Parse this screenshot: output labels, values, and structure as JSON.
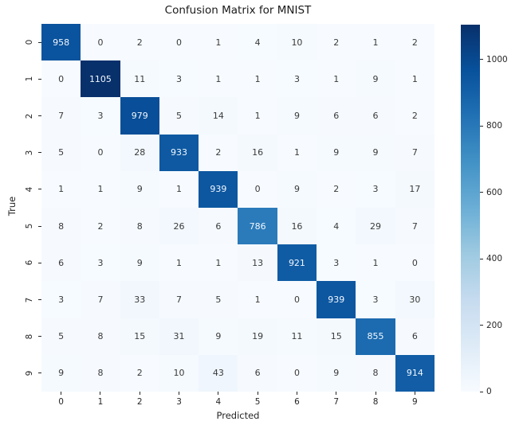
{
  "chart_data": {
    "type": "heatmap",
    "title": "Confusion Matrix for MNIST",
    "xlabel": "Predicted",
    "ylabel": "True",
    "x_tick_labels": [
      "0",
      "1",
      "2",
      "3",
      "4",
      "5",
      "6",
      "7",
      "8",
      "9"
    ],
    "y_tick_labels": [
      "0",
      "1",
      "2",
      "3",
      "4",
      "5",
      "6",
      "7",
      "8",
      "9"
    ],
    "matrix": [
      [
        958,
        0,
        2,
        0,
        1,
        4,
        10,
        2,
        1,
        2
      ],
      [
        0,
        1105,
        11,
        3,
        1,
        1,
        3,
        1,
        9,
        1
      ],
      [
        7,
        3,
        979,
        5,
        14,
        1,
        9,
        6,
        6,
        2
      ],
      [
        5,
        0,
        28,
        933,
        2,
        16,
        1,
        9,
        9,
        7
      ],
      [
        1,
        1,
        9,
        1,
        939,
        0,
        9,
        2,
        3,
        17
      ],
      [
        8,
        2,
        8,
        26,
        6,
        786,
        16,
        4,
        29,
        7
      ],
      [
        6,
        3,
        9,
        1,
        1,
        13,
        921,
        3,
        1,
        0
      ],
      [
        3,
        7,
        33,
        7,
        5,
        1,
        0,
        939,
        3,
        30
      ],
      [
        5,
        8,
        15,
        31,
        9,
        19,
        11,
        15,
        855,
        6
      ],
      [
        9,
        8,
        2,
        10,
        43,
        6,
        0,
        9,
        8,
        914
      ]
    ],
    "vmin": 0,
    "vmax": 1105,
    "colormap": "Blues",
    "colormap_anchors": [
      "#f7fbff",
      "#deebf7",
      "#c6dbef",
      "#9ecae1",
      "#6baed6",
      "#4292c6",
      "#2171b5",
      "#08519c",
      "#08306b"
    ],
    "colorbar_ticks": [
      "0",
      "200",
      "400",
      "600",
      "800",
      "1000"
    ],
    "colorbar_position": "right",
    "grid": false,
    "annotation_dark_text": "#3a3a3a",
    "annotation_light_text": "#f2f7fc",
    "background": "#ffffff"
  }
}
